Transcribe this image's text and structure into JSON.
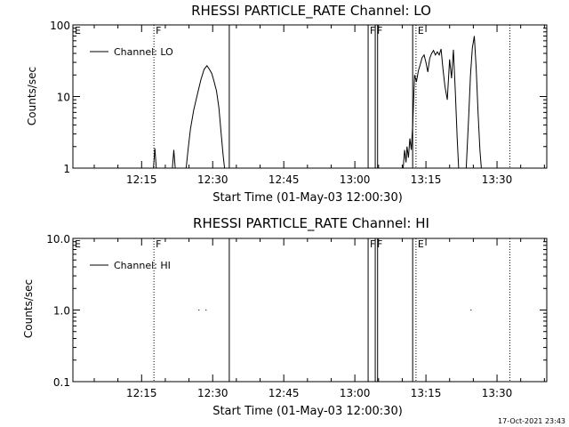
{
  "footer_timestamp": "17-Oct-2021 23:43",
  "chart_data": [
    {
      "type": "line",
      "title": "RHESSI PARTICLE_RATE Channel: LO",
      "xlabel": "Start Time (01-May-03 12:00:30)",
      "ylabel": "Counts/sec",
      "yscale": "log",
      "ylim": [
        1,
        100
      ],
      "y_tick_labels": [
        "1",
        "10",
        "100"
      ],
      "y_tick_values": [
        1,
        10,
        100
      ],
      "xlim_minutes": [
        0.5,
        40.0
      ],
      "x_tick_labels": [
        "12:15",
        "12:30",
        "12:45",
        "13:00",
        "13:15",
        "13:30"
      ],
      "x_tick_minutes": [
        15,
        30,
        45,
        60,
        75,
        90
      ],
      "legend": {
        "label": "Channel: LO",
        "position": "top-left"
      },
      "series": [
        {
          "name": "Channel: LO",
          "segments": [
            [
              [
                17.5,
                1.0
              ],
              [
                17.8,
                1.9
              ],
              [
                18.1,
                1.0
              ]
            ],
            [
              [
                21.5,
                1.0
              ],
              [
                21.8,
                1.8
              ],
              [
                22.1,
                1.0
              ]
            ],
            [
              [
                24.4,
                1.0
              ],
              [
                24.8,
                1.8
              ],
              [
                25.3,
                3.5
              ],
              [
                26.0,
                6.5
              ],
              [
                26.8,
                11
              ],
              [
                27.5,
                17
              ],
              [
                28.2,
                24
              ],
              [
                28.8,
                27
              ],
              [
                29.3,
                24
              ],
              [
                29.8,
                21
              ],
              [
                30.2,
                17
              ],
              [
                30.8,
                12
              ],
              [
                31.3,
                7
              ],
              [
                31.8,
                3
              ],
              [
                32.2,
                1.5
              ],
              [
                32.5,
                1.0
              ]
            ],
            [
              [
                70.2,
                1.0
              ],
              [
                70.5,
                1.8
              ],
              [
                70.8,
                1.2
              ],
              [
                71.0,
                2.0
              ],
              [
                71.3,
                1.4
              ],
              [
                71.6,
                2.6
              ],
              [
                71.9,
                1.8
              ],
              [
                72.2,
                4.0
              ],
              [
                72.6,
                20
              ],
              [
                73.0,
                16
              ],
              [
                73.4,
                23
              ],
              [
                73.8,
                28
              ],
              [
                74.2,
                35
              ],
              [
                74.6,
                38
              ],
              [
                75.0,
                30
              ],
              [
                75.4,
                22
              ],
              [
                75.8,
                34
              ],
              [
                76.2,
                40
              ],
              [
                76.6,
                44
              ],
              [
                77.0,
                38
              ],
              [
                77.4,
                42
              ],
              [
                77.8,
                38
              ],
              [
                78.2,
                46
              ],
              [
                78.6,
                24
              ],
              [
                79.0,
                14
              ],
              [
                79.5,
                9
              ],
              [
                80.0,
                33
              ],
              [
                80.4,
                18
              ],
              [
                80.8,
                45
              ],
              [
                81.2,
                12
              ],
              [
                81.6,
                2.5
              ],
              [
                81.9,
                1.0
              ]
            ],
            [
              [
                83.5,
                1.0
              ],
              [
                84.0,
                5.0
              ],
              [
                84.4,
                20
              ],
              [
                84.8,
                48
              ],
              [
                85.2,
                70
              ],
              [
                85.6,
                25
              ],
              [
                86.0,
                6.0
              ],
              [
                86.4,
                1.8
              ],
              [
                86.7,
                1.0
              ]
            ]
          ]
        }
      ],
      "flags": [
        {
          "label": "E",
          "minute": 0.5,
          "style": "dotted"
        },
        {
          "label": "F",
          "minute": 17.6,
          "style": "dotted"
        },
        {
          "label": "",
          "minute": 33.5,
          "style": "solid"
        },
        {
          "label": "F",
          "minute": 62.8,
          "style": "solid"
        },
        {
          "label": "F",
          "minute": 64.3,
          "style": "solid"
        },
        {
          "label": "",
          "minute": 64.8,
          "style": "solid"
        },
        {
          "label": "",
          "minute": 72.2,
          "style": "solid"
        },
        {
          "label": "E",
          "minute": 72.9,
          "style": "dotted"
        },
        {
          "label": "",
          "minute": 92.7,
          "style": "dotted"
        }
      ]
    },
    {
      "type": "line",
      "title": "RHESSI PARTICLE_RATE Channel: HI",
      "xlabel": "Start Time (01-May-03 12:00:30)",
      "ylabel": "Counts/sec",
      "yscale": "log",
      "ylim": [
        0.1,
        10
      ],
      "y_tick_labels": [
        "0.1",
        "1.0",
        "10.0"
      ],
      "y_tick_values": [
        0.1,
        1,
        10
      ],
      "xlim_minutes": [
        0.5,
        40.0
      ],
      "x_tick_labels": [
        "12:15",
        "12:30",
        "12:45",
        "13:00",
        "13:15",
        "13:30"
      ],
      "x_tick_minutes": [
        15,
        30,
        45,
        60,
        75,
        90
      ],
      "legend": {
        "label": "Channel: HI",
        "position": "top-left"
      },
      "series": [
        {
          "name": "Channel: HI",
          "segments": [
            [
              [
                27.0,
                1.0
              ],
              [
                27.2,
                1.0
              ]
            ],
            [
              [
                28.5,
                1.0
              ],
              [
                28.7,
                1.0
              ]
            ],
            [
              [
                84.4,
                1.0
              ],
              [
                84.6,
                1.0
              ]
            ]
          ]
        }
      ],
      "flags": [
        {
          "label": "E",
          "minute": 0.5,
          "style": "dotted"
        },
        {
          "label": "F",
          "minute": 17.6,
          "style": "dotted"
        },
        {
          "label": "",
          "minute": 33.5,
          "style": "solid"
        },
        {
          "label": "F",
          "minute": 62.8,
          "style": "solid"
        },
        {
          "label": "F",
          "minute": 64.3,
          "style": "solid"
        },
        {
          "label": "",
          "minute": 64.8,
          "style": "solid"
        },
        {
          "label": "",
          "minute": 72.2,
          "style": "solid"
        },
        {
          "label": "E",
          "minute": 72.9,
          "style": "dotted"
        },
        {
          "label": "",
          "minute": 92.7,
          "style": "dotted"
        }
      ]
    }
  ]
}
